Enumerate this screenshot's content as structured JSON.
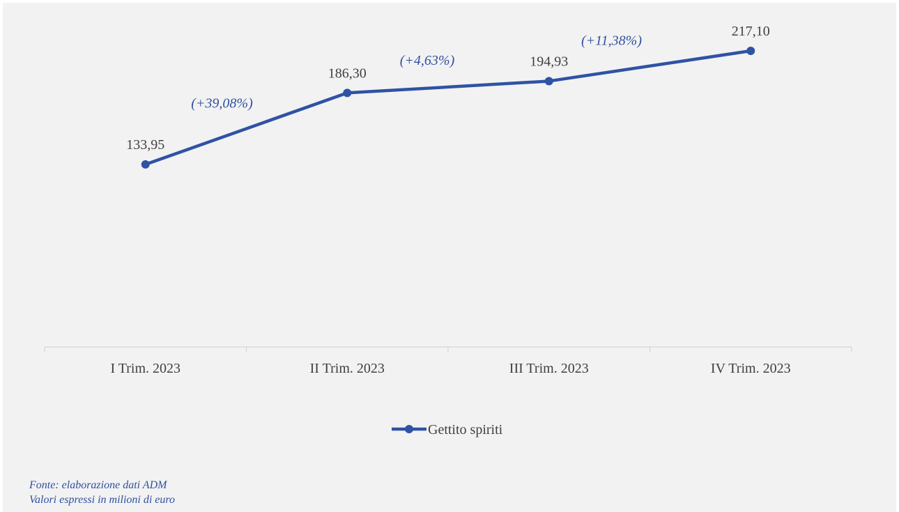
{
  "chart_data": {
    "type": "line",
    "categories": [
      "I Trim. 2023",
      "II Trim. 2023",
      "III Trim. 2023",
      "IV Trim. 2023"
    ],
    "series": [
      {
        "name": "Gettito spiriti",
        "values": [
          133.95,
          186.3,
          194.93,
          217.1
        ],
        "value_labels": [
          "133,95",
          "186,30",
          "194,93",
          "217,10"
        ],
        "color": "#2f52a4"
      }
    ],
    "annotations": [
      "(+39,08%)",
      "(+4,63%)",
      "(+11,38%)"
    ],
    "legend": {
      "position": "bottom",
      "entries": [
        "Gettito spiriti"
      ]
    },
    "grid": false,
    "markers": "circle"
  },
  "notes": {
    "source": "Fonte: elaborazione dati ADM",
    "units": "Valori espressi in milioni di euro"
  }
}
